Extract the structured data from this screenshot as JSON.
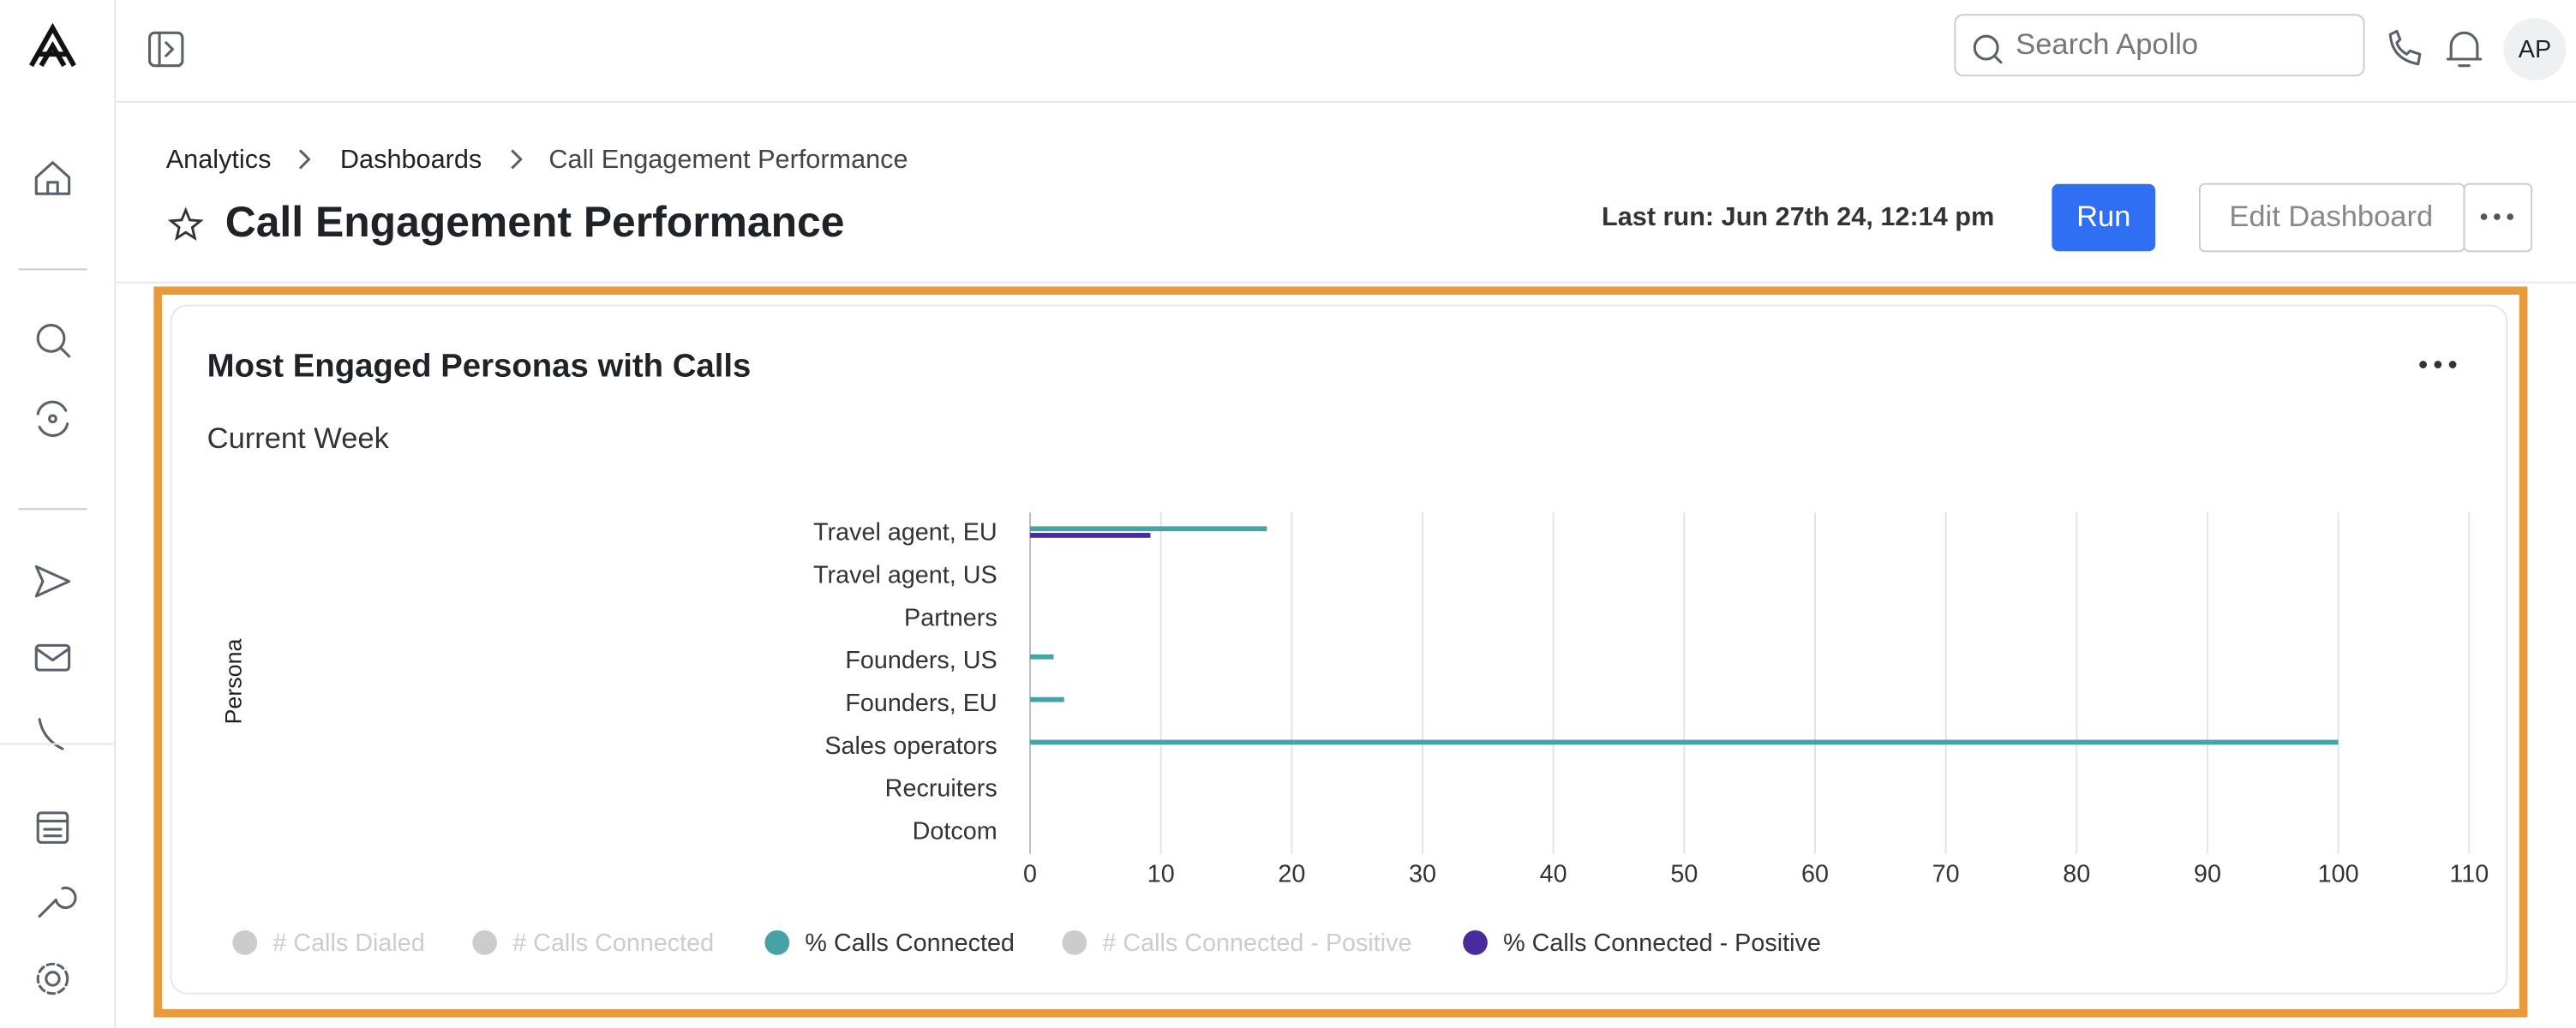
{
  "app": {
    "search_placeholder": "Search Apollo",
    "avatar": "AP"
  },
  "header": {
    "breadcrumb": [
      "Analytics",
      "Dashboards",
      "Call Engagement Performance"
    ],
    "title": "Call Engagement Performance",
    "last_run": "Last run: Jun 27th 24, 12:14 pm",
    "run_button": "Run",
    "edit_button": "Edit Dashboard"
  },
  "chart_data": {
    "type": "hbar",
    "title": "Most Engaged Personas with Calls",
    "subtitle": "Current Week",
    "y_label": "Persona",
    "categories": [
      "Travel agent, EU",
      "Travel agent, US",
      "Partners",
      "Founders, US",
      "Founders, EU",
      "Sales operators",
      "Recruiters",
      "Dotcom"
    ],
    "series": [
      {
        "name": "# Calls Dialed",
        "color": "#cccccc",
        "visible": false
      },
      {
        "name": "# Calls Connected",
        "color": "#cccccc",
        "visible": false
      },
      {
        "name": "% Calls Connected",
        "color": "#46a3a5",
        "visible": true,
        "values": [
          18.1,
          null,
          null,
          1.8,
          2.6,
          100,
          null,
          null
        ]
      },
      {
        "name": "# Calls Connected - Positive",
        "color": "#cccccc",
        "visible": false
      },
      {
        "name": "% Calls Connected - Positive",
        "color": "#4b2a9e",
        "visible": true,
        "values": [
          9.2,
          null,
          null,
          null,
          null,
          null,
          null,
          null
        ]
      }
    ],
    "xlim": [
      0,
      110
    ],
    "xticks": [
      0,
      10,
      20,
      30,
      40,
      50,
      60,
      70,
      80,
      90,
      100,
      110
    ],
    "grid": true
  }
}
